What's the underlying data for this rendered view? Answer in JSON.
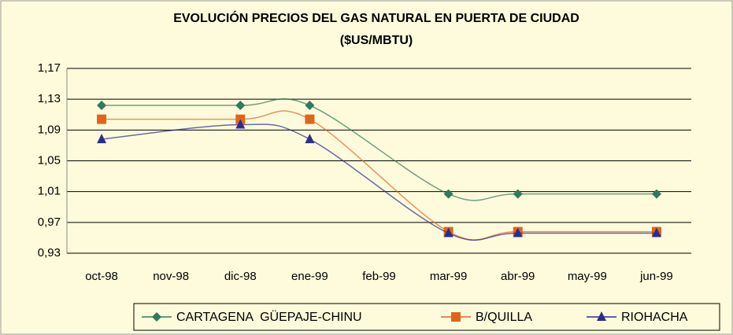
{
  "chart_data": {
    "type": "line",
    "title": "EVOLUCIÓN PRECIOS DEL GAS NATURAL EN PUERTA DE CIUDAD",
    "subtitle": "($US/MBTU)",
    "categories": [
      "oct-98",
      "nov-98",
      "dic-98",
      "ene-99",
      "feb-99",
      "mar-99",
      "abr-99",
      "may-99",
      "jun-99"
    ],
    "series": [
      {
        "name": "CARTAGENA  GÜEPAJE-CHINU",
        "color": "#2f7a5c",
        "marker": "diamond",
        "values": [
          1.122,
          null,
          1.122,
          1.122,
          null,
          1.007,
          1.007,
          null,
          1.007
        ]
      },
      {
        "name": "B/QUILLA",
        "color": "#e0651c",
        "marker": "square",
        "values": [
          1.104,
          null,
          1.104,
          1.104,
          null,
          0.958,
          0.958,
          null,
          0.958
        ]
      },
      {
        "name": "RIOHACHA",
        "color": "#2b2d8c",
        "marker": "triangle",
        "values": [
          1.078,
          null,
          1.097,
          1.078,
          null,
          0.956,
          0.956,
          null,
          0.956
        ]
      }
    ],
    "ylim": [
      0.93,
      1.17
    ],
    "yticks": [
      {
        "value": 0.93,
        "label": "0,93"
      },
      {
        "value": 0.97,
        "label": "0,97"
      },
      {
        "value": 1.01,
        "label": "1,01"
      },
      {
        "value": 1.05,
        "label": "1,05"
      },
      {
        "value": 1.09,
        "label": "1,09"
      },
      {
        "value": 1.13,
        "label": "1,13"
      },
      {
        "value": 1.17,
        "label": "1,17"
      }
    ],
    "grid": true
  }
}
